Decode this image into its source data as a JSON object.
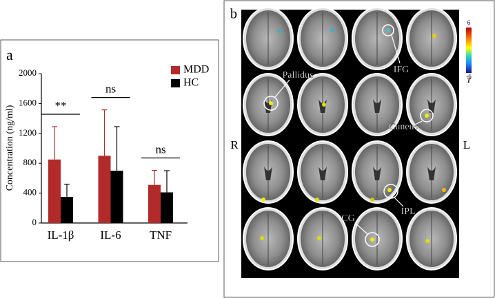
{
  "chart_data": {
    "type": "bar",
    "panel_label": "a",
    "y_label": "Concentration (ng/ml)",
    "categories": [
      "IL-1β",
      "IL-6",
      "TNF"
    ],
    "series": [
      {
        "name": "MDD",
        "color": "#b22a2a",
        "values": [
          850,
          900,
          510
        ],
        "errors": [
          440,
          615,
          195
        ]
      },
      {
        "name": "HC",
        "color": "#000000",
        "values": [
          350,
          700,
          410
        ],
        "errors": [
          170,
          590,
          290
        ]
      }
    ],
    "annotations": [
      "**",
      "ns",
      "ns"
    ],
    "ylim": [
      0,
      2000
    ],
    "yticks": [
      0,
      400,
      800,
      1200,
      1600,
      2000
    ],
    "legend": "upper right"
  },
  "brain_figure": {
    "panel_label": "b",
    "side_labels": [
      "R",
      "L"
    ],
    "regions": [
      "Pallidus",
      "IFG",
      "Cuneus",
      "IPL",
      "CG"
    ],
    "colorbar": {
      "label": "T",
      "ticks": [
        6,
        -6
      ]
    }
  }
}
